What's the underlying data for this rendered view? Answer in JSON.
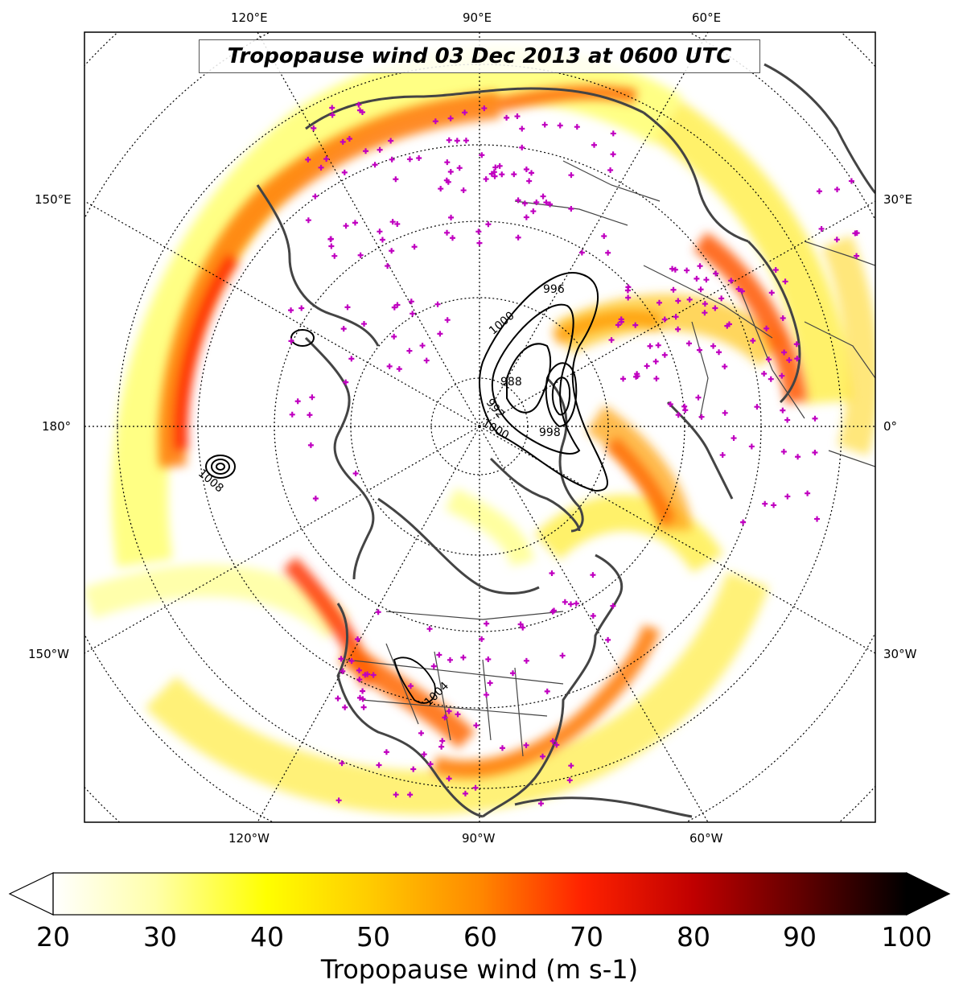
{
  "map": {
    "title": "Tropopause wind 03 Dec 2013 at 0600 UTC",
    "projection": "north-polar-stereographic",
    "longitude_labels": {
      "top": [
        "120°E",
        "90°E",
        "60°E"
      ],
      "bottom": [
        "120°W",
        "90°W",
        "60°W"
      ],
      "left": [
        "150°E",
        "180°",
        "150°W"
      ],
      "right": [
        "30°E",
        "0°",
        "30°W"
      ]
    },
    "pressure_contour_labels": [
      "996",
      "1000",
      "988",
      "992",
      "1000",
      "998",
      "1008",
      "1004"
    ],
    "colors": {
      "coastline": "#444444",
      "borders": "#444444",
      "station_marker": "#c000c0",
      "contour": "#000000",
      "graticule": "#000000"
    }
  },
  "colorbar": {
    "label": "Tropopause wind (m s-1)",
    "ticks": [
      20,
      30,
      40,
      50,
      60,
      70,
      80,
      90,
      100
    ],
    "min": 20,
    "max": 100,
    "extend": "both",
    "colormap": "hot_r",
    "stops": [
      "#ffffff",
      "#ffff99",
      "#ffff00",
      "#ffcc00",
      "#ff8800",
      "#ff4400",
      "#ff0000",
      "#cc0000",
      "#880000",
      "#440000",
      "#000000"
    ]
  }
}
